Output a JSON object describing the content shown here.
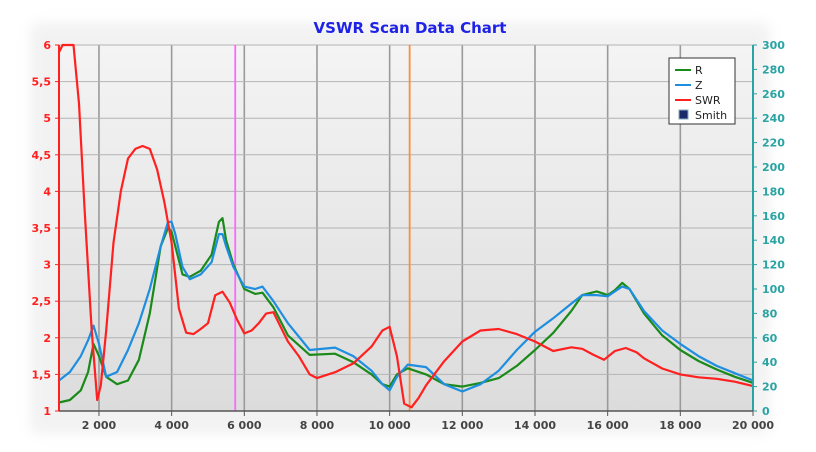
{
  "chart_data": {
    "type": "line",
    "title": "VSWR Scan Data Chart",
    "xlim": [
      900,
      20000
    ],
    "x_ticks": [
      2000,
      4000,
      6000,
      8000,
      10000,
      12000,
      14000,
      16000,
      18000,
      20000
    ],
    "x_tick_labels": [
      "2 000",
      "4 000",
      "6 000",
      "8 000",
      "10 000",
      "12 000",
      "14 000",
      "16 000",
      "18 000",
      "20 000"
    ],
    "y_left": {
      "lim": [
        1,
        6
      ],
      "ticks": [
        1,
        1.5,
        2,
        2.5,
        3,
        3.5,
        4,
        4.5,
        5,
        5.5,
        6
      ],
      "tick_labels": [
        "1",
        "1,5",
        "2",
        "2,5",
        "3",
        "3,5",
        "4",
        "4,5",
        "5",
        "5,5",
        "6"
      ],
      "color": "#ff2020"
    },
    "y_right": {
      "lim": [
        0,
        300
      ],
      "ticks": [
        0,
        20,
        40,
        60,
        80,
        100,
        120,
        140,
        160,
        180,
        200,
        220,
        240,
        260,
        280,
        300
      ],
      "tick_labels": [
        "0",
        "20",
        "40",
        "60",
        "80",
        "100",
        "120",
        "140",
        "160",
        "180",
        "200",
        "220",
        "240",
        "260",
        "280",
        "300"
      ],
      "color": "#2aa3a3"
    },
    "grid": true,
    "legend_position": "top-right",
    "markers": [
      {
        "x": 5750,
        "color": "#ff66ff"
      },
      {
        "x": 10550,
        "color": "#ff8c3a"
      }
    ],
    "series": [
      {
        "name": "R",
        "color": "#1a8a1a",
        "axis": "right",
        "x": [
          900,
          1200,
          1500,
          1700,
          1850,
          2000,
          2200,
          2500,
          2800,
          3100,
          3400,
          3700,
          3900,
          4000,
          4100,
          4300,
          4500,
          4800,
          5100,
          5300,
          5400,
          5500,
          5700,
          6000,
          6300,
          6500,
          6800,
          7200,
          7800,
          8500,
          9000,
          9500,
          9800,
          10000,
          10200,
          10500,
          11000,
          11500,
          12000,
          12500,
          13000,
          13500,
          14000,
          14500,
          15000,
          15300,
          15700,
          16000,
          16200,
          16400,
          16600,
          17000,
          17500,
          18000,
          18500,
          19000,
          19500,
          20000
        ],
        "y": [
          7,
          9,
          17,
          32,
          55,
          45,
          28,
          22,
          25,
          42,
          80,
          135,
          150,
          147,
          135,
          112,
          110,
          115,
          128,
          155,
          158,
          140,
          120,
          100,
          96,
          97,
          85,
          62,
          46,
          47,
          40,
          30,
          22,
          20,
          30,
          35,
          30,
          22,
          20,
          23,
          27,
          37,
          50,
          64,
          82,
          95,
          98,
          95,
          99,
          105,
          100,
          80,
          62,
          50,
          41,
          34,
          28,
          23
        ]
      },
      {
        "name": "Z",
        "color": "#1e8ee0",
        "axis": "right",
        "x": [
          900,
          1200,
          1500,
          1700,
          1850,
          2000,
          2200,
          2500,
          2800,
          3100,
          3400,
          3700,
          3900,
          4000,
          4100,
          4300,
          4500,
          4800,
          5100,
          5300,
          5400,
          5500,
          5700,
          6000,
          6300,
          6500,
          6800,
          7200,
          7800,
          8500,
          9000,
          9500,
          9800,
          10000,
          10200,
          10500,
          11000,
          11500,
          12000,
          12500,
          13000,
          13500,
          14000,
          14500,
          15000,
          15300,
          15700,
          16000,
          16200,
          16400,
          16600,
          17000,
          17500,
          18000,
          18500,
          19000,
          19500,
          20000
        ],
        "y": [
          25,
          32,
          45,
          58,
          70,
          55,
          28,
          32,
          50,
          72,
          100,
          135,
          155,
          155,
          145,
          118,
          108,
          112,
          122,
          145,
          145,
          135,
          118,
          102,
          100,
          102,
          90,
          72,
          50,
          52,
          45,
          33,
          22,
          17,
          28,
          38,
          36,
          22,
          16,
          22,
          33,
          50,
          65,
          76,
          88,
          95,
          95,
          94,
          98,
          102,
          100,
          82,
          66,
          55,
          45,
          37,
          31,
          25
        ]
      },
      {
        "name": "SWR",
        "color": "#ff2020",
        "axis": "left",
        "x": [
          900,
          1000,
          1150,
          1300,
          1450,
          1600,
          1800,
          1950,
          2050,
          2200,
          2400,
          2600,
          2800,
          3000,
          3200,
          3400,
          3600,
          3800,
          4000,
          4200,
          4400,
          4600,
          4800,
          5000,
          5200,
          5400,
          5600,
          5800,
          6000,
          6200,
          6400,
          6600,
          6800,
          7000,
          7200,
          7500,
          7800,
          8000,
          8500,
          9000,
          9500,
          9800,
          10000,
          10200,
          10400,
          10600,
          10800,
          11000,
          11500,
          12000,
          12500,
          13000,
          13500,
          14000,
          14500,
          15000,
          15300,
          15600,
          15900,
          16200,
          16500,
          16800,
          17000,
          17500,
          18000,
          18500,
          19000,
          19500,
          20000
        ],
        "y": [
          5.9,
          6.0,
          6.0,
          6.0,
          5.2,
          3.8,
          2.1,
          1.15,
          1.35,
          2.1,
          3.3,
          4.0,
          4.45,
          4.58,
          4.62,
          4.58,
          4.3,
          3.85,
          3.3,
          2.4,
          2.07,
          2.05,
          2.12,
          2.2,
          2.58,
          2.63,
          2.48,
          2.25,
          2.06,
          2.1,
          2.2,
          2.33,
          2.35,
          2.15,
          1.95,
          1.75,
          1.5,
          1.45,
          1.53,
          1.65,
          1.88,
          2.1,
          2.15,
          1.75,
          1.1,
          1.05,
          1.18,
          1.35,
          1.68,
          1.95,
          2.1,
          2.12,
          2.05,
          1.95,
          1.82,
          1.87,
          1.85,
          1.77,
          1.7,
          1.82,
          1.86,
          1.8,
          1.72,
          1.58,
          1.5,
          1.46,
          1.44,
          1.4,
          1.34
        ]
      }
    ],
    "legend": [
      "R",
      "Z",
      "SWR",
      "Smith"
    ]
  }
}
